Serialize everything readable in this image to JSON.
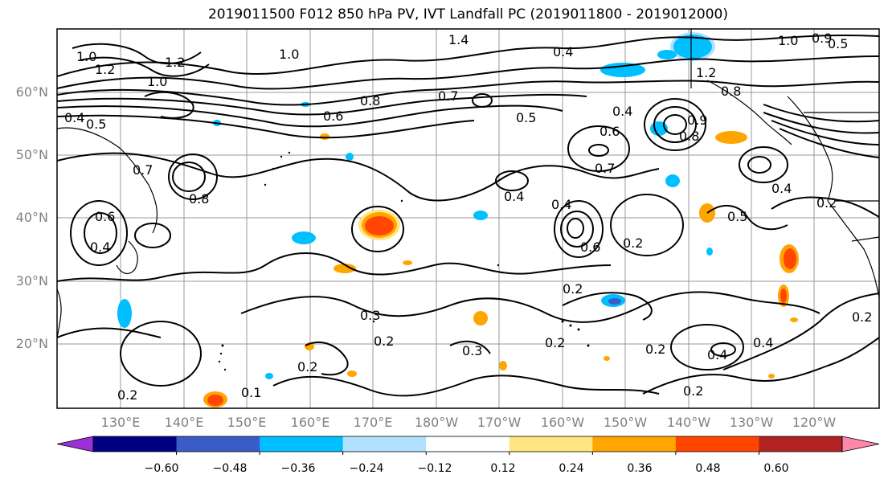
{
  "title": "2019011500 F012 850 hPa PV, IVT Landfall PC (2019011800 - 2019012000)",
  "lat_labels": [
    "60°N",
    "50°N",
    "40°N",
    "30°N",
    "20°N"
  ],
  "lon_labels": [
    "130°E",
    "140°E",
    "150°E",
    "160°E",
    "170°E",
    "180°W",
    "170°W",
    "160°W",
    "150°W",
    "140°W",
    "130°W",
    "120°W"
  ],
  "colorbar": {
    "colors": [
      "#9b30d9",
      "#000080",
      "#3a5cc9",
      "#00bfff",
      "#b0e2ff",
      "#ffffff",
      "#ffe680",
      "#ffa500",
      "#ff4500",
      "#b22222",
      "#ff88aa"
    ],
    "tick_labels": [
      "−0.60",
      "−0.48",
      "−0.36",
      "−0.24",
      "−0.12",
      "0.12",
      "0.24",
      "0.36",
      "0.48",
      "0.60"
    ]
  },
  "contour_labels": [
    "1.0",
    "1.2",
    "1.2",
    "1.0",
    "1.0",
    "0.5",
    "0.4",
    "0.6",
    "0.8",
    "0.7",
    "0.5",
    "0.4",
    "0.4",
    "0.6",
    "0.8",
    "0.9",
    "0.7",
    "0.7",
    "0.5",
    "0.4",
    "0.6",
    "0.2",
    "0.4",
    "0.2",
    "0.3",
    "0.2",
    "0.3",
    "0.2",
    "0.2",
    "0.2",
    "0.4",
    "0.4",
    "0.2",
    "0.2",
    "0.2",
    "0.1",
    "0.2",
    "0.6",
    "1.0",
    "1.2",
    "1.4",
    "0.8",
    "0.9",
    "0.8",
    "0.5",
    "0.4",
    "0.4"
  ]
}
